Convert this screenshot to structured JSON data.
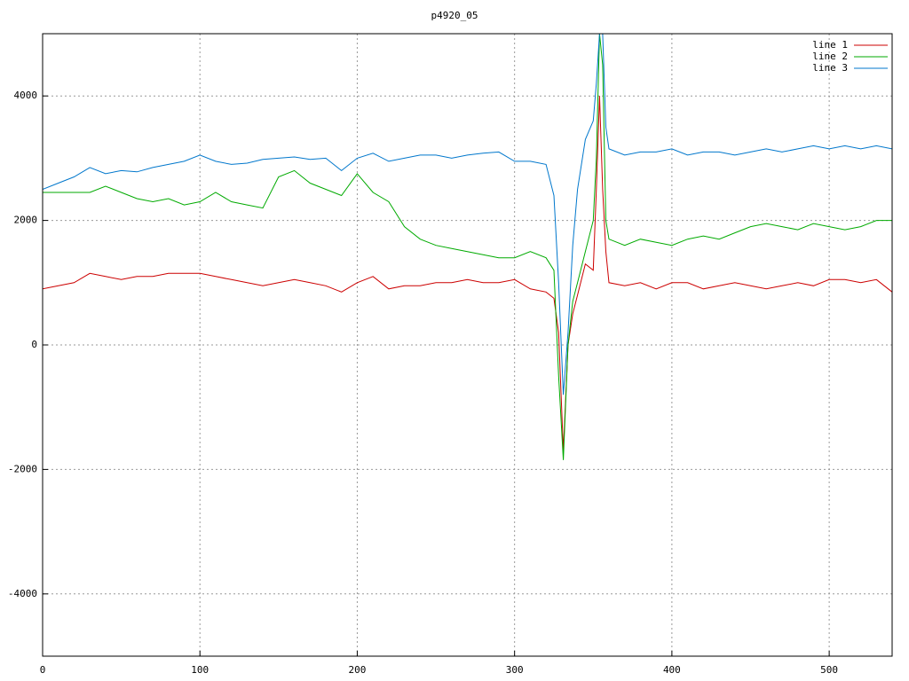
{
  "chart_data": {
    "type": "line",
    "title": "p4920_05",
    "x": [
      0,
      10,
      20,
      30,
      40,
      50,
      60,
      70,
      80,
      90,
      100,
      110,
      120,
      130,
      140,
      150,
      160,
      170,
      180,
      190,
      200,
      210,
      220,
      230,
      240,
      250,
      260,
      270,
      280,
      290,
      300,
      310,
      320,
      325,
      328,
      331,
      334,
      337,
      340,
      345,
      350,
      352,
      354,
      356,
      358,
      360,
      370,
      380,
      390,
      400,
      410,
      420,
      430,
      440,
      450,
      460,
      470,
      480,
      490,
      500,
      510,
      520,
      530,
      540
    ],
    "series": [
      {
        "name": "line 1",
        "color": "#cc0000",
        "values": [
          900,
          950,
          1000,
          1150,
          1100,
          1050,
          1100,
          1100,
          1150,
          1150,
          1150,
          1100,
          1050,
          1000,
          950,
          1000,
          1050,
          1000,
          950,
          850,
          1000,
          1100,
          900,
          950,
          950,
          1000,
          1000,
          1050,
          1000,
          1000,
          1050,
          900,
          850,
          750,
          200,
          -1700,
          0,
          500,
          800,
          1300,
          1200,
          2500,
          4000,
          2500,
          1500,
          1000,
          950,
          1000,
          900,
          1000,
          1000,
          900,
          950,
          1000,
          950,
          900,
          950,
          1000,
          950,
          1050,
          1050,
          1000,
          1050,
          850
        ]
      },
      {
        "name": "line 2",
        "color": "#00aa00",
        "values": [
          2450,
          2450,
          2450,
          2450,
          2550,
          2450,
          2350,
          2300,
          2350,
          2250,
          2300,
          2450,
          2300,
          2250,
          2200,
          2700,
          2800,
          2600,
          2500,
          2400,
          2750,
          2450,
          2300,
          1900,
          1700,
          1600,
          1550,
          1500,
          1450,
          1400,
          1400,
          1500,
          1400,
          1200,
          -500,
          -1850,
          0,
          700,
          1000,
          1500,
          2000,
          3000,
          5000,
          4500,
          2000,
          1700,
          1600,
          1700,
          1650,
          1600,
          1700,
          1750,
          1700,
          1800,
          1900,
          1950,
          1900,
          1850,
          1950,
          1900,
          1850,
          1900,
          2000,
          2000
        ]
      },
      {
        "name": "line 3",
        "color": "#0077cc",
        "values": [
          2500,
          2600,
          2700,
          2850,
          2750,
          2800,
          2780,
          2850,
          2900,
          2950,
          3050,
          2950,
          2900,
          2920,
          2980,
          3000,
          3020,
          2980,
          3000,
          2800,
          3000,
          3080,
          2950,
          3000,
          3050,
          3050,
          3000,
          3050,
          3080,
          3100,
          2950,
          2950,
          2900,
          2400,
          1000,
          -800,
          200,
          1600,
          2500,
          3300,
          3600,
          4200,
          5000,
          5000,
          3500,
          3150,
          3050,
          3100,
          3100,
          3150,
          3050,
          3100,
          3100,
          3050,
          3100,
          3150,
          3100,
          3150,
          3200,
          3150,
          3200,
          3150,
          3200,
          3150
        ]
      }
    ],
    "xlim": [
      0,
      540
    ],
    "ylim": [
      -5000,
      5000
    ],
    "xticks": [
      0,
      100,
      200,
      300,
      400,
      500
    ],
    "yticks": [
      -4000,
      -2000,
      0,
      2000,
      4000
    ],
    "grid": true,
    "legend": "top-right"
  }
}
